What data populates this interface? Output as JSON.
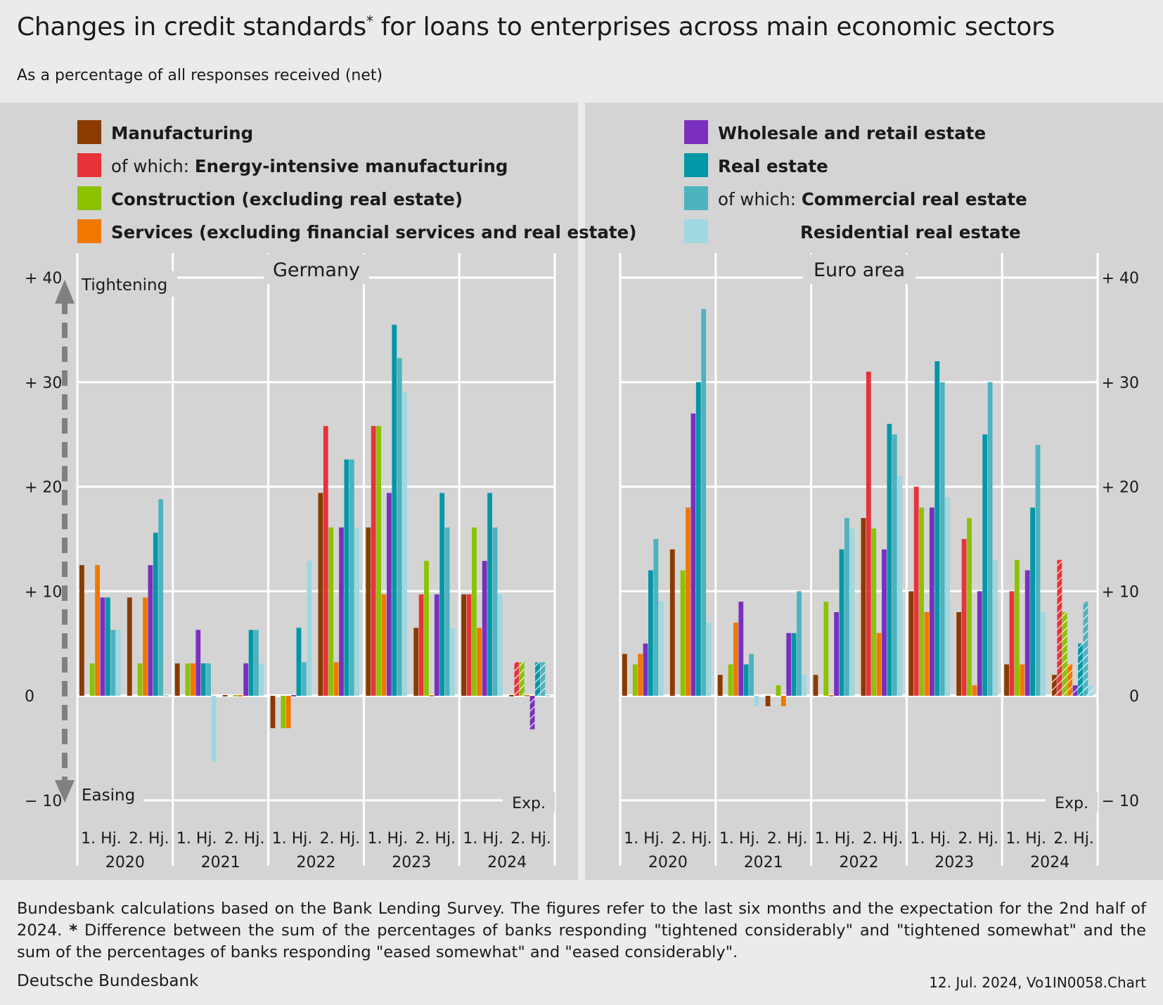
{
  "title": "Changes in credit standards",
  "title_mark": "*",
  "title_rest": " for loans to enterprises across main economic sectors",
  "subtitle": "As a percentage of all responses received (net)",
  "note_text": "Bundesbank calculations based on the Bank Lending Survey. The figures refer to the last six months and the expectation for the 2nd half of 2024.",
  "note_star": "*",
  "note_star_text": " Difference between the sum of the percentages of banks responding \"tightened considerably\" and \"tightened somewhat\" and the sum of the percentages of banks responding \"eased somewhat\" and \"eased considerably\".",
  "source": "Deutsche Bundesbank",
  "stamp": "12. Jul. 2024, Vo1IN0058.Chart",
  "legend": [
    {
      "prefix": "",
      "label": "Manufacturing",
      "color": "#8b3a00"
    },
    {
      "prefix": "of which: ",
      "label": "Energy-intensive manufacturing",
      "color": "#e8323a"
    },
    {
      "prefix": "",
      "label": "Construction (excluding real estate)",
      "color": "#8cc200"
    },
    {
      "prefix": "",
      "label": "Services (excluding financial services and real estate)",
      "color": "#f07800"
    },
    {
      "prefix": "",
      "label": "Wholesale and retail estate",
      "color": "#7b2fbe"
    },
    {
      "prefix": "",
      "label": "Real estate",
      "color": "#0097a7"
    },
    {
      "prefix": "of which: ",
      "label": "Commercial real estate",
      "color": "#4db3be"
    },
    {
      "prefix": "",
      "label": "Residential real estate",
      "color": "#9ed8e0"
    }
  ],
  "arrow_labels": {
    "up": "Tightening",
    "down": "Easing"
  },
  "exp_label": "Exp.",
  "chart_data": {
    "type": "bar",
    "ylim": [
      -10,
      40
    ],
    "yticks": [
      "+ 40",
      "+ 30",
      "+ 20",
      "+ 10",
      "0",
      "− 10"
    ],
    "ytick_values": [
      40,
      30,
      20,
      10,
      0,
      -10
    ],
    "categories": [
      "1. Hj.",
      "2. Hj.",
      "1. Hj.",
      "2. Hj.",
      "1. Hj.",
      "2. Hj.",
      "1. Hj.",
      "2. Hj.",
      "1. Hj.",
      "2. Hj."
    ],
    "years": [
      "2020",
      "2021",
      "2022",
      "2023",
      "2024"
    ],
    "expectation_category": 9,
    "panels": [
      {
        "name": "Germany",
        "series": [
          {
            "name": "Manufacturing",
            "values": [
              12.5,
              9.4,
              3.1,
              0,
              -3.1,
              19.4,
              16.1,
              6.5,
              9.7,
              0
            ]
          },
          {
            "name": "Energy-intensive manufacturing",
            "values": [
              null,
              null,
              null,
              null,
              null,
              25.8,
              25.8,
              9.7,
              9.7,
              3.2
            ]
          },
          {
            "name": "Construction (excluding real estate)",
            "values": [
              3.1,
              3.1,
              3.1,
              0,
              -3.1,
              16.1,
              25.8,
              12.9,
              16.1,
              3.2
            ]
          },
          {
            "name": "Services (excluding financial services and real estate)",
            "values": [
              12.5,
              9.4,
              3.1,
              0,
              -3.1,
              3.2,
              9.7,
              0,
              6.5,
              0
            ]
          },
          {
            "name": "Wholesale and retail estate",
            "values": [
              9.4,
              12.5,
              6.3,
              3.1,
              0,
              16.1,
              19.4,
              9.7,
              12.9,
              -3.2
            ]
          },
          {
            "name": "Real estate",
            "values": [
              9.4,
              15.6,
              3.1,
              6.3,
              6.5,
              22.6,
              35.5,
              19.4,
              19.4,
              3.2
            ]
          },
          {
            "name": "Commercial real estate",
            "values": [
              6.3,
              18.8,
              3.1,
              6.3,
              3.2,
              22.6,
              32.3,
              16.1,
              16.1,
              3.2
            ]
          },
          {
            "name": "Residential real estate",
            "values": [
              6.3,
              0,
              -6.3,
              3.1,
              12.9,
              16.1,
              29.0,
              6.5,
              9.7,
              0
            ]
          }
        ]
      },
      {
        "name": "Euro area",
        "series": [
          {
            "name": "Manufacturing",
            "values": [
              4,
              14,
              2,
              -1,
              2,
              17,
              10,
              8,
              3,
              2
            ]
          },
          {
            "name": "Energy-intensive manufacturing",
            "values": [
              null,
              null,
              null,
              null,
              null,
              31,
              20,
              15,
              10,
              13
            ]
          },
          {
            "name": "Construction (excluding real estate)",
            "values": [
              3,
              12,
              3,
              1,
              9,
              16,
              18,
              17,
              13,
              8
            ]
          },
          {
            "name": "Services (excluding financial services and real estate)",
            "values": [
              4,
              18,
              7,
              -1,
              0,
              6,
              8,
              1,
              3,
              3
            ]
          },
          {
            "name": "Wholesale and retail estate",
            "values": [
              5,
              27,
              9,
              6,
              8,
              14,
              18,
              10,
              12,
              1
            ]
          },
          {
            "name": "Real estate",
            "values": [
              12,
              30,
              3,
              6,
              14,
              26,
              32,
              25,
              18,
              5
            ]
          },
          {
            "name": "Commercial real estate",
            "values": [
              15,
              37,
              4,
              10,
              17,
              25,
              30,
              30,
              24,
              9
            ]
          },
          {
            "name": "Residential real estate",
            "values": [
              9,
              7,
              -1,
              2,
              16,
              21,
              19,
              13,
              8,
              1
            ]
          }
        ]
      }
    ]
  }
}
